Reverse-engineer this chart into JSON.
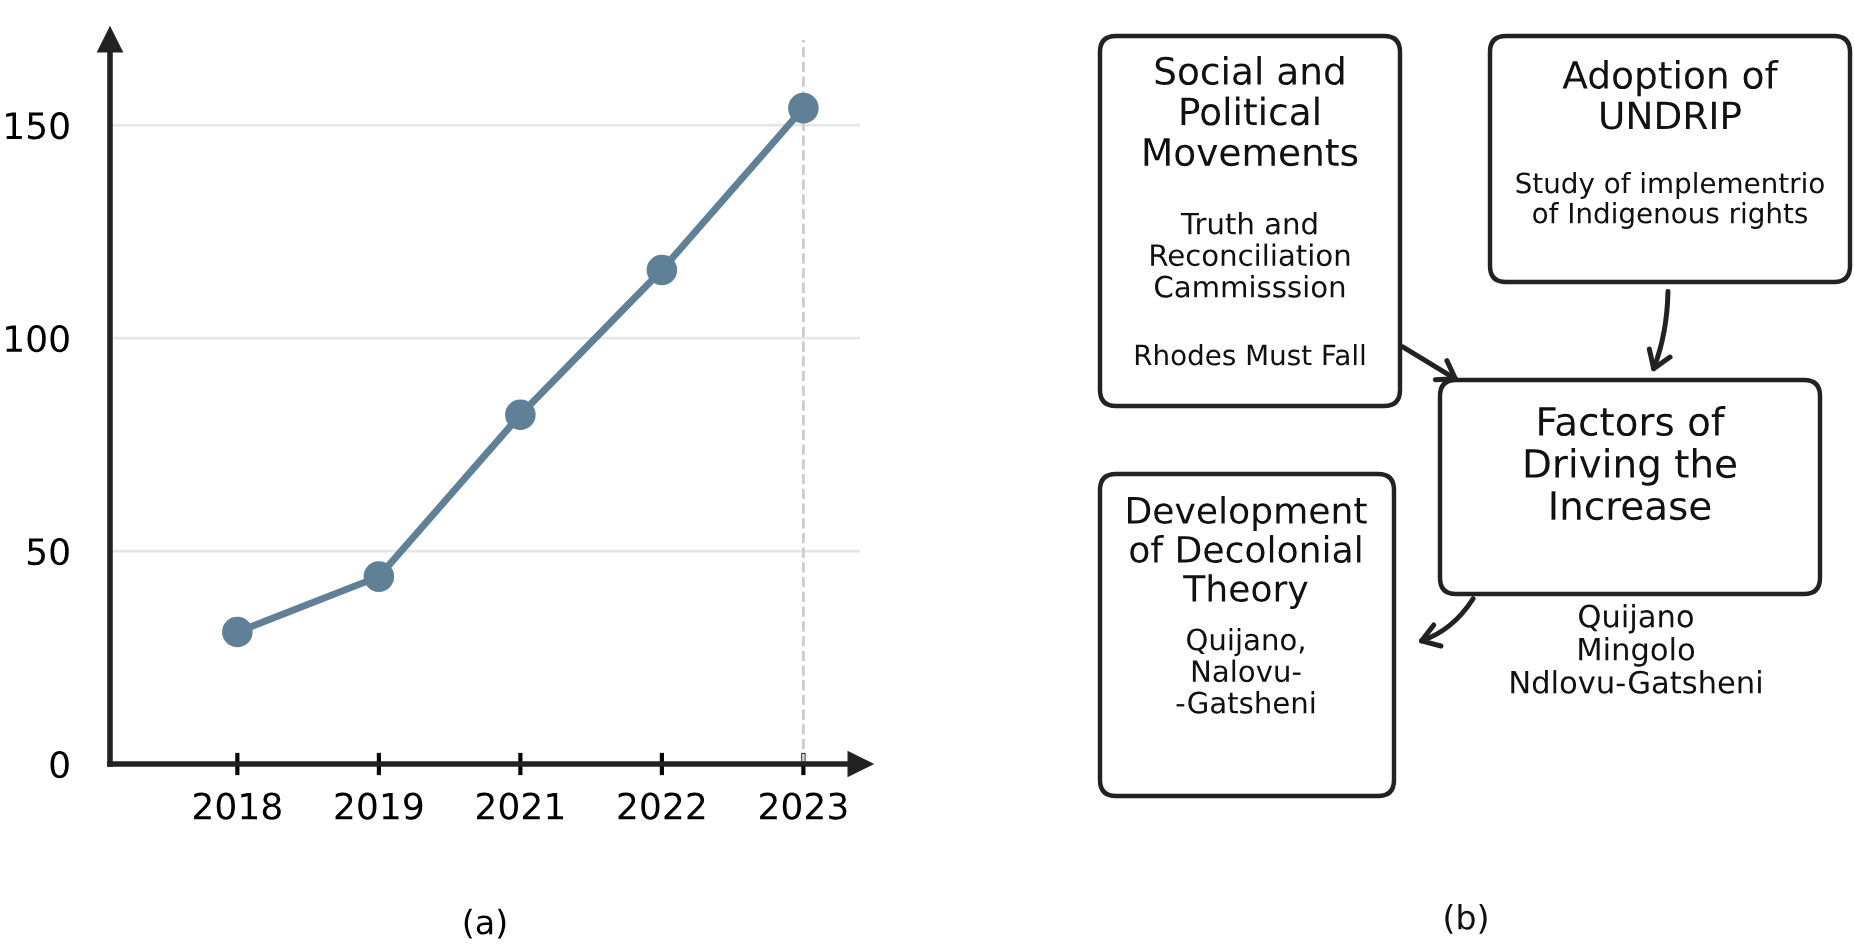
{
  "chart_data": [
    {
      "type": "line",
      "categories": [
        "2018",
        "2019",
        "2021",
        "2022",
        "2023"
      ],
      "series": [
        {
          "color": "#5f8096",
          "values": [
            31,
            44,
            82,
            116,
            154
          ]
        }
      ],
      "ylim": [
        0,
        170
      ],
      "yticks": [
        0,
        50,
        100,
        150
      ],
      "grid": "y",
      "marker": "circle",
      "line_style": "solid",
      "ref_lines": [
        {
          "axis": "x",
          "value": "2023",
          "line_style": "dashed",
          "color": "#cccccc"
        }
      ],
      "annotations": [
        "(a)"
      ]
    },
    {
      "type": "other",
      "annotations": [
        "Social and\nPolitical\nMovements",
        "Truth and\nReconciliation\nCammisssion",
        "Rhodes Must Fall",
        "Adoption of\nUNDRIP",
        "Study of implementrio\nof Indigenous rights",
        "Factors of\nDriving the\nIncrease",
        "Development\nof Decolonial\nTheory",
        "Quijano,\nNalovu-\n-Gatsheni",
        "Quijano\nMingolo\nNdlovu-Gatsheni",
        "(b)"
      ]
    }
  ]
}
